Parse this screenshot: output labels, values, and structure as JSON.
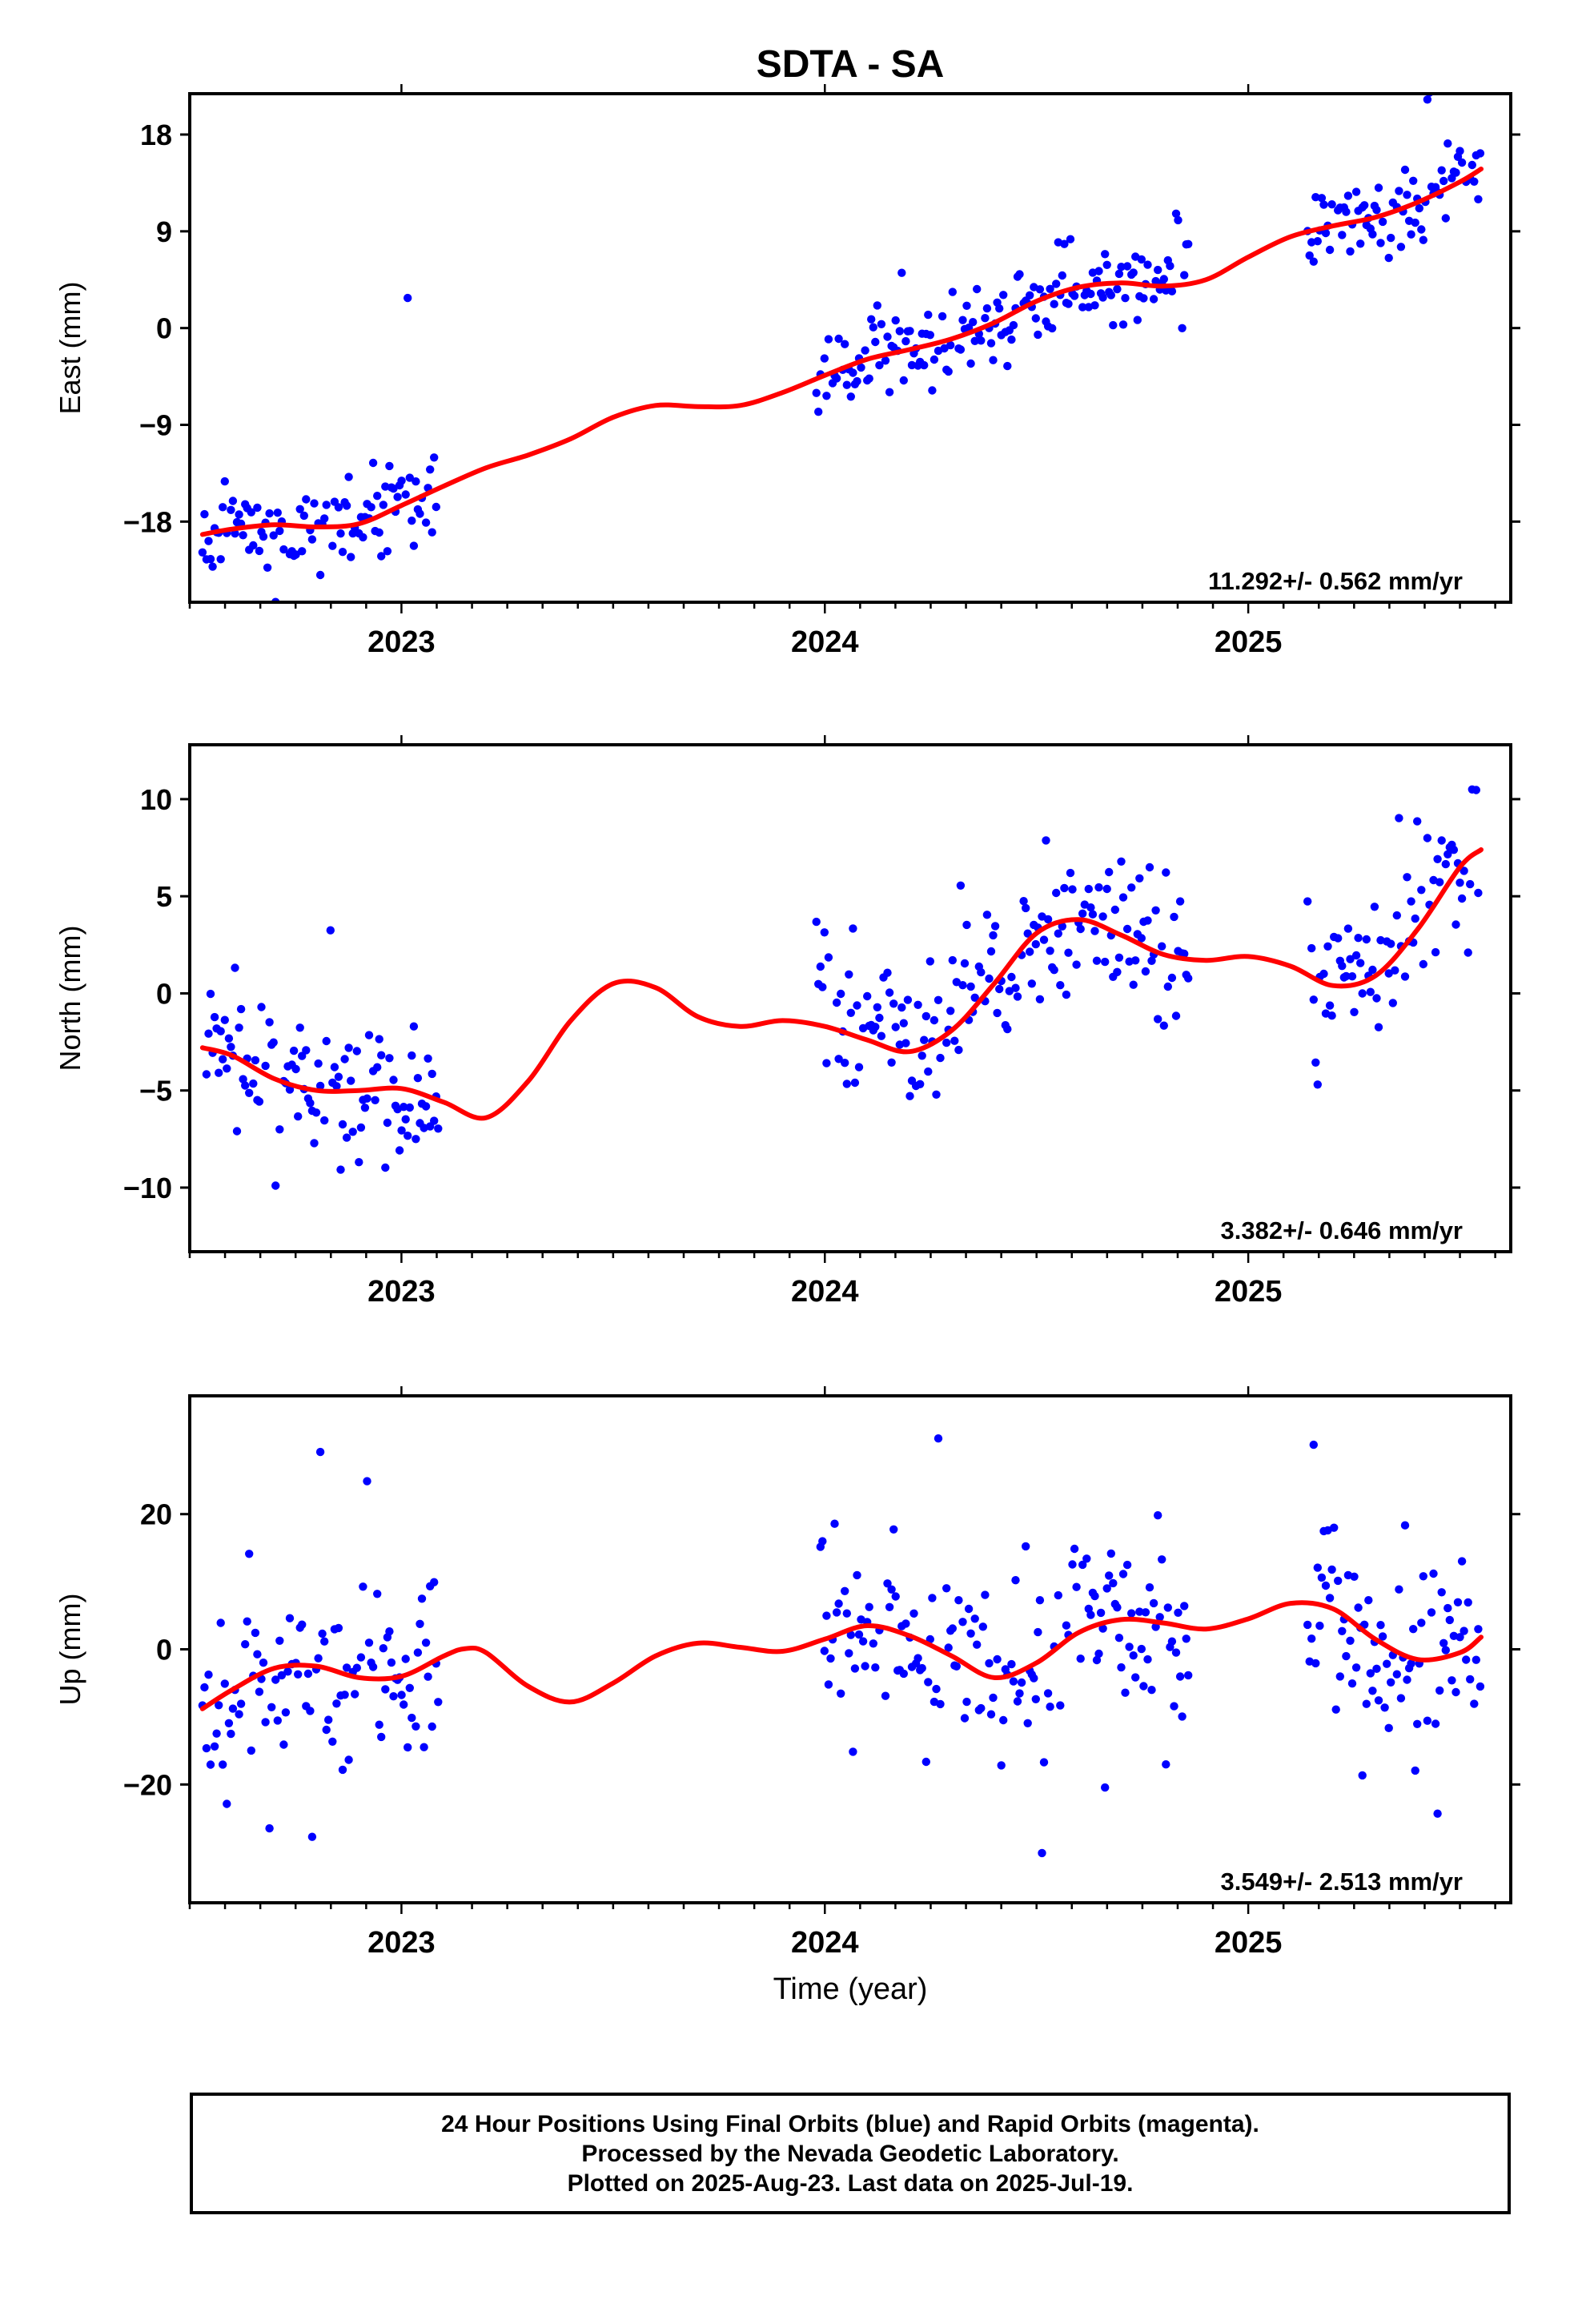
{
  "title": "SDTA - SA",
  "xlabel": "Time (year)",
  "colors": {
    "final_orbits": "#0000ff",
    "model": "#ff0000",
    "rapid_orbits": "#ff00ff"
  },
  "chart_data": [
    {
      "type": "scatter",
      "component": "East",
      "ylabel": "East (mm)",
      "xlim": [
        2022.5,
        2025.62
      ],
      "ylim": [
        -25.5,
        21.8
      ],
      "yticks": [
        -18,
        -9,
        0,
        9,
        18
      ],
      "ytick_labels": [
        "−18",
        "−9",
        "0",
        "9",
        "18"
      ],
      "xticks": [
        2023,
        2024,
        2025
      ],
      "rate": "11.292+/- 0.562 mm/yr",
      "segments": [
        [
          2022.53,
          2023.09
        ],
        [
          2023.98,
          2024.86
        ],
        [
          2025.14,
          2025.55
        ]
      ],
      "fit": [
        [
          2022.53,
          -19.2
        ],
        [
          2022.6,
          -18.7
        ],
        [
          2022.7,
          -18.3
        ],
        [
          2022.8,
          -18.5
        ],
        [
          2022.9,
          -18.2
        ],
        [
          2023.0,
          -16.5
        ],
        [
          2023.1,
          -14.7
        ],
        [
          2023.2,
          -13.0
        ],
        [
          2023.3,
          -11.8
        ],
        [
          2023.4,
          -10.3
        ],
        [
          2023.5,
          -8.3
        ],
        [
          2023.6,
          -7.2
        ],
        [
          2023.7,
          -7.3
        ],
        [
          2023.8,
          -7.2
        ],
        [
          2023.9,
          -6.0
        ],
        [
          2024.0,
          -4.4
        ],
        [
          2024.1,
          -2.9
        ],
        [
          2024.2,
          -2.0
        ],
        [
          2024.3,
          -1.0
        ],
        [
          2024.4,
          0.5
        ],
        [
          2024.5,
          2.5
        ],
        [
          2024.6,
          3.8
        ],
        [
          2024.7,
          4.2
        ],
        [
          2024.8,
          3.9
        ],
        [
          2024.9,
          4.5
        ],
        [
          2025.0,
          6.6
        ],
        [
          2025.1,
          8.5
        ],
        [
          2025.2,
          9.5
        ],
        [
          2025.3,
          10.3
        ],
        [
          2025.4,
          11.7
        ],
        [
          2025.5,
          13.6
        ],
        [
          2025.55,
          14.8
        ]
      ],
      "scatter": {
        "sigma": 1.9,
        "outlier_rate": 0.05,
        "outlier_scale": 3.2,
        "spacing": 0.0048,
        "seed": 11
      }
    },
    {
      "type": "scatter",
      "component": "North",
      "ylabel": "North (mm)",
      "xlim": [
        2022.5,
        2025.62
      ],
      "ylim": [
        -13.3,
        12.8
      ],
      "yticks": [
        -10,
        -5,
        0,
        5,
        10
      ],
      "ytick_labels": [
        "−10",
        "−5",
        "0",
        "5",
        "10"
      ],
      "xticks": [
        2023,
        2024,
        2025
      ],
      "rate": "3.382+/- 0.646 mm/yr",
      "segments": [
        [
          2022.53,
          2023.09
        ],
        [
          2023.98,
          2024.86
        ],
        [
          2025.14,
          2025.55
        ]
      ],
      "fit": [
        [
          2022.53,
          -2.8
        ],
        [
          2022.6,
          -3.2
        ],
        [
          2022.7,
          -4.4
        ],
        [
          2022.8,
          -5.0
        ],
        [
          2022.9,
          -5.0
        ],
        [
          2023.0,
          -4.9
        ],
        [
          2023.1,
          -5.6
        ],
        [
          2023.2,
          -6.4
        ],
        [
          2023.3,
          -4.5
        ],
        [
          2023.4,
          -1.4
        ],
        [
          2023.5,
          0.5
        ],
        [
          2023.6,
          0.3
        ],
        [
          2023.7,
          -1.2
        ],
        [
          2023.8,
          -1.7
        ],
        [
          2023.9,
          -1.4
        ],
        [
          2024.0,
          -1.7
        ],
        [
          2024.1,
          -2.4
        ],
        [
          2024.2,
          -3.0
        ],
        [
          2024.3,
          -1.9
        ],
        [
          2024.4,
          0.5
        ],
        [
          2024.5,
          3.1
        ],
        [
          2024.6,
          3.8
        ],
        [
          2024.7,
          3.0
        ],
        [
          2024.8,
          2.0
        ],
        [
          2024.9,
          1.7
        ],
        [
          2025.0,
          1.9
        ],
        [
          2025.1,
          1.4
        ],
        [
          2025.2,
          0.4
        ],
        [
          2025.3,
          0.9
        ],
        [
          2025.4,
          3.3
        ],
        [
          2025.5,
          6.5
        ],
        [
          2025.55,
          7.4
        ]
      ],
      "scatter": {
        "sigma": 1.9,
        "outlier_rate": 0.04,
        "outlier_scale": 3.0,
        "spacing": 0.0048,
        "seed": 23
      }
    },
    {
      "type": "scatter",
      "component": "Up",
      "ylabel": "Up (mm)",
      "xlim": [
        2022.5,
        2025.62
      ],
      "ylim": [
        -37.5,
        37.5
      ],
      "yticks": [
        -20,
        0,
        20
      ],
      "ytick_labels": [
        "−20",
        "0",
        "20"
      ],
      "xticks": [
        2023,
        2024,
        2025
      ],
      "rate": "3.549+/- 2.513 mm/yr",
      "segments": [
        [
          2022.53,
          2023.09
        ],
        [
          2023.98,
          2024.86
        ],
        [
          2025.14,
          2025.55
        ]
      ],
      "fit": [
        [
          2022.53,
          -8.8
        ],
        [
          2022.6,
          -6.0
        ],
        [
          2022.7,
          -2.8
        ],
        [
          2022.8,
          -2.5
        ],
        [
          2022.9,
          -4.2
        ],
        [
          2023.0,
          -4.0
        ],
        [
          2023.1,
          -1.0
        ],
        [
          2023.15,
          0.1
        ],
        [
          2023.2,
          -0.5
        ],
        [
          2023.3,
          -5.5
        ],
        [
          2023.4,
          -7.8
        ],
        [
          2023.5,
          -5.0
        ],
        [
          2023.6,
          -1.0
        ],
        [
          2023.7,
          0.9
        ],
        [
          2023.8,
          0.3
        ],
        [
          2023.9,
          -0.3
        ],
        [
          2024.0,
          1.5
        ],
        [
          2024.1,
          3.5
        ],
        [
          2024.2,
          2.0
        ],
        [
          2024.3,
          -1.0
        ],
        [
          2024.4,
          -4.2
        ],
        [
          2024.5,
          -2.0
        ],
        [
          2024.6,
          2.5
        ],
        [
          2024.7,
          4.4
        ],
        [
          2024.8,
          3.9
        ],
        [
          2024.9,
          3.0
        ],
        [
          2025.0,
          4.5
        ],
        [
          2025.1,
          6.8
        ],
        [
          2025.2,
          6.0
        ],
        [
          2025.3,
          1.5
        ],
        [
          2025.4,
          -1.5
        ],
        [
          2025.5,
          -0.5
        ],
        [
          2025.55,
          1.8
        ]
      ],
      "scatter": {
        "sigma": 6.5,
        "outlier_rate": 0.06,
        "outlier_scale": 3.3,
        "spacing": 0.0048,
        "seed": 37
      }
    }
  ],
  "footer": {
    "line1": "24 Hour Positions Using Final Orbits (blue) and Rapid Orbits (magenta).",
    "line2": "Processed by the Nevada Geodetic Laboratory.",
    "line3": "Plotted on 2025-Aug-23. Last data on 2025-Jul-19."
  }
}
